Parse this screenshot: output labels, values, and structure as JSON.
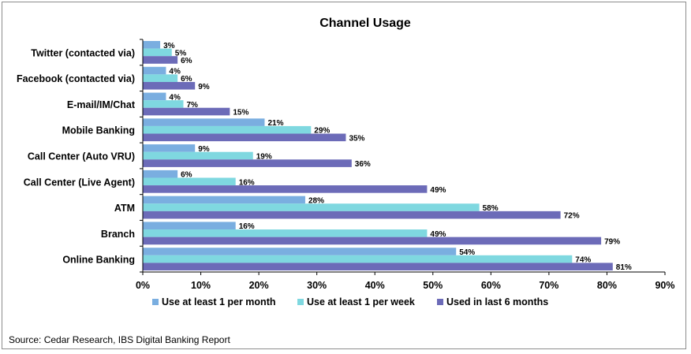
{
  "source": "Source: Cedar Research, IBS Digital Banking Report",
  "chart_data": {
    "type": "bar",
    "orientation": "horizontal",
    "title": "Channel Usage",
    "categories": [
      "Twitter (contacted via)",
      "Facebook (contacted via)",
      "E-mail/IM/Chat",
      "Mobile Banking",
      "Call Center (Auto VRU)",
      "Call Center (Live Agent)",
      "ATM",
      "Branch",
      "Online Banking"
    ],
    "series": [
      {
        "name": "Use at least 1 per month",
        "color": "#7aaee0",
        "values": [
          3,
          4,
          4,
          21,
          9,
          6,
          28,
          16,
          54
        ]
      },
      {
        "name": "Use at least 1 per week",
        "color": "#7fd8e0",
        "values": [
          5,
          6,
          7,
          29,
          19,
          16,
          58,
          49,
          74
        ]
      },
      {
        "name": "Used in last 6 months",
        "color": "#6c6bb8",
        "values": [
          6,
          9,
          15,
          35,
          36,
          49,
          72,
          79,
          81
        ]
      }
    ],
    "value_suffix": "%",
    "xlim": [
      0,
      90
    ],
    "xticks": [
      "0%",
      "10%",
      "20%",
      "30%",
      "40%",
      "50%",
      "60%",
      "70%",
      "80%",
      "90%"
    ],
    "grid": false,
    "legend_position": "bottom"
  }
}
